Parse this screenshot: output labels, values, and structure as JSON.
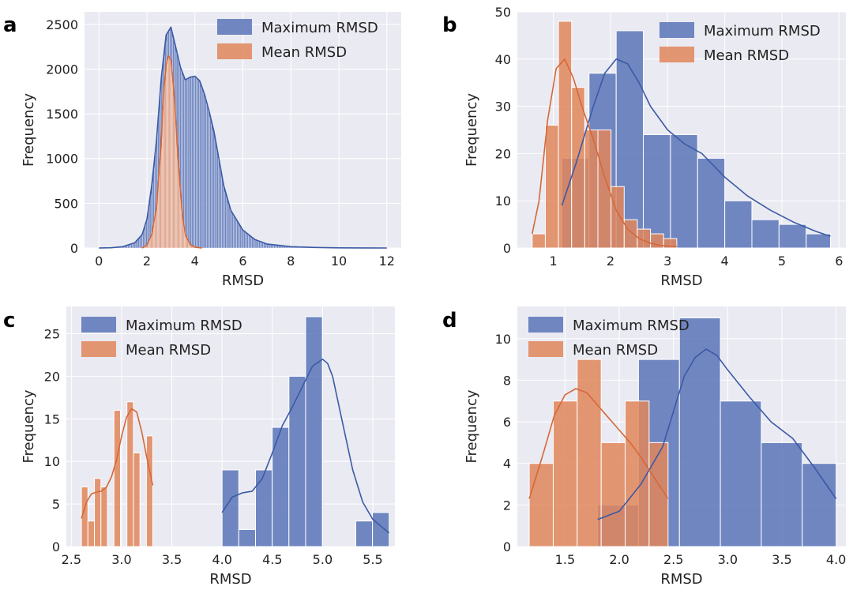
{
  "colors": {
    "max_fill": "#5a74b8",
    "max_line": "#3b5aa5",
    "mean_fill": "#e1865a",
    "mean_line": "#d5683a",
    "panel_bg": "#eaeaf2",
    "grid": "#ffffff"
  },
  "chart_data": [
    {
      "panel": "a",
      "type": "histogram",
      "xlabel": "RMSD",
      "ylabel": "Frequency",
      "xlim": [
        -0.6,
        12.6
      ],
      "ylim": [
        0,
        2640
      ],
      "xticks": [
        0,
        2,
        4,
        6,
        8,
        10,
        12
      ],
      "yticks": [
        0,
        500,
        1000,
        1500,
        2000,
        2500
      ],
      "grid": true,
      "legend_position": "upper right",
      "series": [
        {
          "name": "Maximum RMSD",
          "color_key": "max",
          "kde_x": [
            0.0,
            0.5,
            1.0,
            1.5,
            1.8,
            2.0,
            2.2,
            2.4,
            2.6,
            2.8,
            3.0,
            3.2,
            3.4,
            3.6,
            3.8,
            4.0,
            4.2,
            4.4,
            4.6,
            4.8,
            5.0,
            5.2,
            5.5,
            6.0,
            6.5,
            7.0,
            8.0,
            9.0,
            10.0,
            11.0,
            12.0
          ],
          "kde_y": [
            0,
            3,
            15,
            60,
            150,
            320,
            700,
            1200,
            1900,
            2380,
            2470,
            2250,
            2020,
            1880,
            1910,
            1920,
            1870,
            1720,
            1520,
            1300,
            1000,
            700,
            420,
            200,
            95,
            45,
            15,
            6,
            2,
            1,
            0
          ]
        },
        {
          "name": "Mean RMSD",
          "color_key": "mean",
          "kde_x": [
            1.8,
            2.0,
            2.2,
            2.4,
            2.6,
            2.7,
            2.8,
            2.9,
            3.0,
            3.1,
            3.2,
            3.3,
            3.4,
            3.5,
            3.6,
            3.8,
            4.0,
            4.3
          ],
          "kde_y": [
            0,
            30,
            150,
            450,
            1200,
            1750,
            2050,
            2150,
            2100,
            1850,
            1450,
            1000,
            620,
            330,
            150,
            40,
            10,
            0
          ]
        }
      ]
    },
    {
      "panel": "b",
      "type": "histogram",
      "xlabel": "RMSD",
      "ylabel": "Frequency",
      "xlim": [
        0.37,
        6.12
      ],
      "ylim": [
        0,
        50
      ],
      "xticks": [
        1,
        2,
        3,
        4,
        5,
        6
      ],
      "yticks": [
        0,
        10,
        20,
        30,
        40,
        50
      ],
      "grid": true,
      "legend_position": "upper right",
      "series": [
        {
          "name": "Maximum RMSD",
          "color_key": "max",
          "bin_edges": [
            1.15,
            1.625,
            2.1,
            2.575,
            3.05,
            3.525,
            4.0,
            4.475,
            4.95,
            5.425,
            5.85
          ],
          "counts": [
            19,
            37,
            46,
            24,
            24,
            19,
            10,
            6,
            5,
            3
          ],
          "kde_x": [
            1.15,
            1.4,
            1.7,
            1.9,
            2.1,
            2.3,
            2.5,
            2.7,
            3.0,
            3.3,
            3.6,
            4.0,
            4.4,
            4.8,
            5.2,
            5.6,
            5.85
          ],
          "kde_y": [
            9,
            18,
            30,
            37,
            40,
            39,
            35,
            30,
            25,
            22,
            20,
            15,
            11,
            8,
            5.5,
            3.5,
            2.5
          ]
        },
        {
          "name": "Mean RMSD",
          "color_key": "mean",
          "bin_edges": [
            0.63,
            0.86,
            1.09,
            1.32,
            1.55,
            1.78,
            2.01,
            2.24,
            2.47,
            2.7,
            2.93,
            3.16
          ],
          "counts": [
            3,
            26,
            48,
            34,
            25,
            25,
            13,
            6,
            4,
            3,
            2
          ],
          "kde_x": [
            0.63,
            0.75,
            0.9,
            1.05,
            1.2,
            1.35,
            1.5,
            1.7,
            1.9,
            2.1,
            2.3,
            2.5,
            2.7,
            2.9,
            3.16
          ],
          "kde_y": [
            3,
            10,
            27,
            38,
            40,
            36,
            30,
            23,
            15,
            8,
            4,
            2,
            1,
            0.5,
            0.3
          ]
        }
      ]
    },
    {
      "panel": "c",
      "type": "histogram",
      "xlabel": "RMSD",
      "ylabel": "Frequency",
      "xlim": [
        2.45,
        5.72
      ],
      "ylim": [
        0,
        28.2
      ],
      "xticks": [
        2.5,
        3.0,
        3.5,
        4.0,
        4.5,
        5.0,
        5.5
      ],
      "yticks": [
        0,
        5,
        10,
        15,
        20,
        25
      ],
      "grid": true,
      "legend_position": "upper left",
      "series": [
        {
          "name": "Maximum RMSD",
          "color_key": "max",
          "bin_edges": [
            4.0,
            4.1663,
            4.3326,
            4.4989,
            4.6652,
            4.8315,
            4.9978,
            5.1641,
            5.3304,
            5.4967,
            5.663
          ],
          "counts": [
            9,
            2,
            9,
            14,
            20,
            27,
            0,
            0,
            3,
            4
          ],
          "kde_x": [
            4.0,
            4.1,
            4.2,
            4.3,
            4.4,
            4.5,
            4.6,
            4.7,
            4.8,
            4.9,
            5.0,
            5.05,
            5.1,
            5.2,
            5.3,
            5.4,
            5.5,
            5.6,
            5.663
          ],
          "kde_y": [
            4,
            5.8,
            6.3,
            6.5,
            8,
            11,
            14.2,
            16.4,
            18.8,
            21.2,
            22,
            21.5,
            20,
            14.5,
            9,
            5.2,
            3.2,
            2.2,
            1.6
          ]
        },
        {
          "name": "Mean RMSD",
          "color_key": "mean",
          "bin_edges": [
            2.6,
            2.6647,
            2.7294,
            2.7941,
            2.8588,
            2.9235,
            2.9882,
            3.0529,
            3.1176,
            3.1823,
            3.247,
            3.31
          ],
          "counts": [
            7,
            3,
            8,
            7,
            0,
            16,
            0,
            17,
            11,
            0,
            13
          ],
          "kde_x": [
            2.6,
            2.65,
            2.7,
            2.75,
            2.8,
            2.85,
            2.9,
            2.95,
            3.0,
            3.05,
            3.1,
            3.15,
            3.2,
            3.25,
            3.31
          ],
          "kde_y": [
            3.3,
            5.2,
            6.2,
            6.4,
            6.5,
            7,
            8.2,
            10.2,
            13,
            15.2,
            16.2,
            15.8,
            13.5,
            10.5,
            7.2
          ]
        }
      ]
    },
    {
      "panel": "d",
      "type": "histogram",
      "xlabel": "RMSD",
      "ylabel": "Frequency",
      "xlim": [
        1.06,
        4.09
      ],
      "ylim": [
        0,
        11.55
      ],
      "xticks": [
        1.5,
        2.0,
        2.5,
        3.0,
        3.5,
        4.0
      ],
      "yticks": [
        0,
        2,
        4,
        6,
        8,
        10
      ],
      "grid": true,
      "legend_position": "upper left",
      "series": [
        {
          "name": "Maximum RMSD",
          "color_key": "max",
          "bin_edges": [
            1.8,
            2.1775,
            2.555,
            2.9325,
            3.31,
            3.6875,
            4.0
          ],
          "counts": [
            2,
            9,
            11,
            7,
            5,
            4
          ],
          "kde_x": [
            1.8,
            2.0,
            2.2,
            2.4,
            2.5,
            2.6,
            2.7,
            2.8,
            2.9,
            3.0,
            3.2,
            3.4,
            3.6,
            3.8,
            4.0
          ],
          "kde_y": [
            1.3,
            1.7,
            3,
            4.8,
            6.5,
            8.2,
            9.1,
            9.5,
            9.2,
            8.5,
            7.2,
            6,
            5.2,
            3.8,
            2.3
          ]
        },
        {
          "name": "Mean RMSD",
          "color_key": "mean",
          "bin_edges": [
            1.17,
            1.3911,
            1.6122,
            1.8333,
            2.0544,
            2.2755,
            2.45
          ],
          "counts": [
            4,
            7,
            9,
            5,
            7,
            5
          ],
          "kde_x": [
            1.17,
            1.3,
            1.4,
            1.5,
            1.6,
            1.7,
            1.8,
            1.9,
            2.0,
            2.1,
            2.2,
            2.3,
            2.45
          ],
          "kde_y": [
            2.3,
            4.5,
            6.3,
            7.3,
            7.6,
            7.4,
            6.8,
            6.2,
            5.6,
            5,
            4.3,
            3.5,
            2.3
          ]
        }
      ]
    }
  ],
  "panel_labels": [
    "a",
    "b",
    "c",
    "d"
  ]
}
